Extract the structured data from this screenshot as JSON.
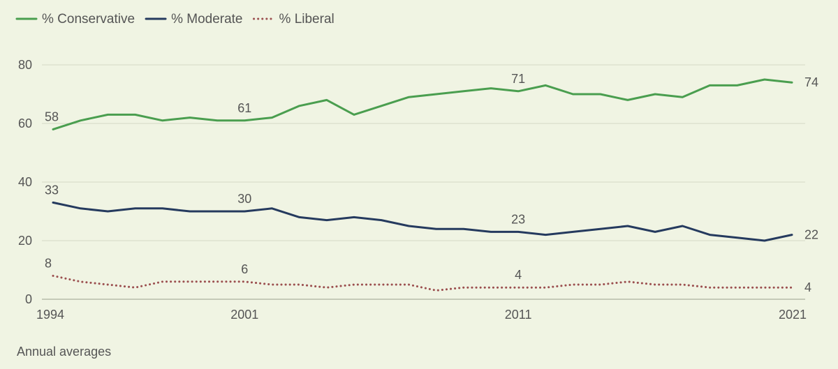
{
  "chart_data": {
    "type": "line",
    "x": [
      1994,
      1995,
      1996,
      1997,
      1998,
      1999,
      2000,
      2001,
      2002,
      2003,
      2004,
      2005,
      2006,
      2007,
      2008,
      2009,
      2010,
      2011,
      2012,
      2013,
      2014,
      2015,
      2016,
      2017,
      2018,
      2019,
      2020,
      2021
    ],
    "series": [
      {
        "name": "% Conservative",
        "color": "#4a9e4f",
        "style": "solid",
        "values": [
          58,
          61,
          63,
          63,
          61,
          62,
          61,
          61,
          62,
          66,
          68,
          63,
          66,
          69,
          70,
          71,
          72,
          71,
          73,
          70,
          70,
          68,
          70,
          69,
          73,
          73,
          75,
          74
        ]
      },
      {
        "name": "% Moderate",
        "color": "#253a5e",
        "style": "solid",
        "values": [
          33,
          31,
          30,
          31,
          31,
          30,
          30,
          30,
          31,
          28,
          27,
          28,
          27,
          25,
          24,
          24,
          23,
          23,
          22,
          23,
          24,
          25,
          23,
          25,
          22,
          21,
          20,
          22
        ]
      },
      {
        "name": "% Liberal",
        "color": "#9b4f4f",
        "style": "dotted",
        "values": [
          8,
          6,
          5,
          4,
          6,
          6,
          6,
          6,
          5,
          5,
          4,
          5,
          5,
          5,
          3,
          4,
          4,
          4,
          4,
          5,
          5,
          6,
          5,
          5,
          4,
          4,
          4,
          4
        ]
      }
    ],
    "data_labels": [
      {
        "series": 0,
        "x": 1994,
        "text": "58"
      },
      {
        "series": 0,
        "x": 2001,
        "text": "61"
      },
      {
        "series": 0,
        "x": 2011,
        "text": "71"
      },
      {
        "series": 0,
        "x": 2021,
        "text": "74"
      },
      {
        "series": 1,
        "x": 1994,
        "text": "33"
      },
      {
        "series": 1,
        "x": 2001,
        "text": "30"
      },
      {
        "series": 1,
        "x": 2011,
        "text": "23"
      },
      {
        "series": 1,
        "x": 2021,
        "text": "22"
      },
      {
        "series": 2,
        "x": 1994,
        "text": "8"
      },
      {
        "series": 2,
        "x": 2001,
        "text": "6"
      },
      {
        "series": 2,
        "x": 2011,
        "text": "4"
      },
      {
        "series": 2,
        "x": 2021,
        "text": "4"
      }
    ],
    "x_ticks": [
      1994,
      2001,
      2011,
      2021
    ],
    "y_ticks": [
      0,
      20,
      40,
      60,
      80
    ],
    "ylim": [
      0,
      80
    ],
    "grid": true,
    "legend_position": "top-left",
    "xlabel": "",
    "ylabel": "",
    "note": "Annual averages"
  }
}
